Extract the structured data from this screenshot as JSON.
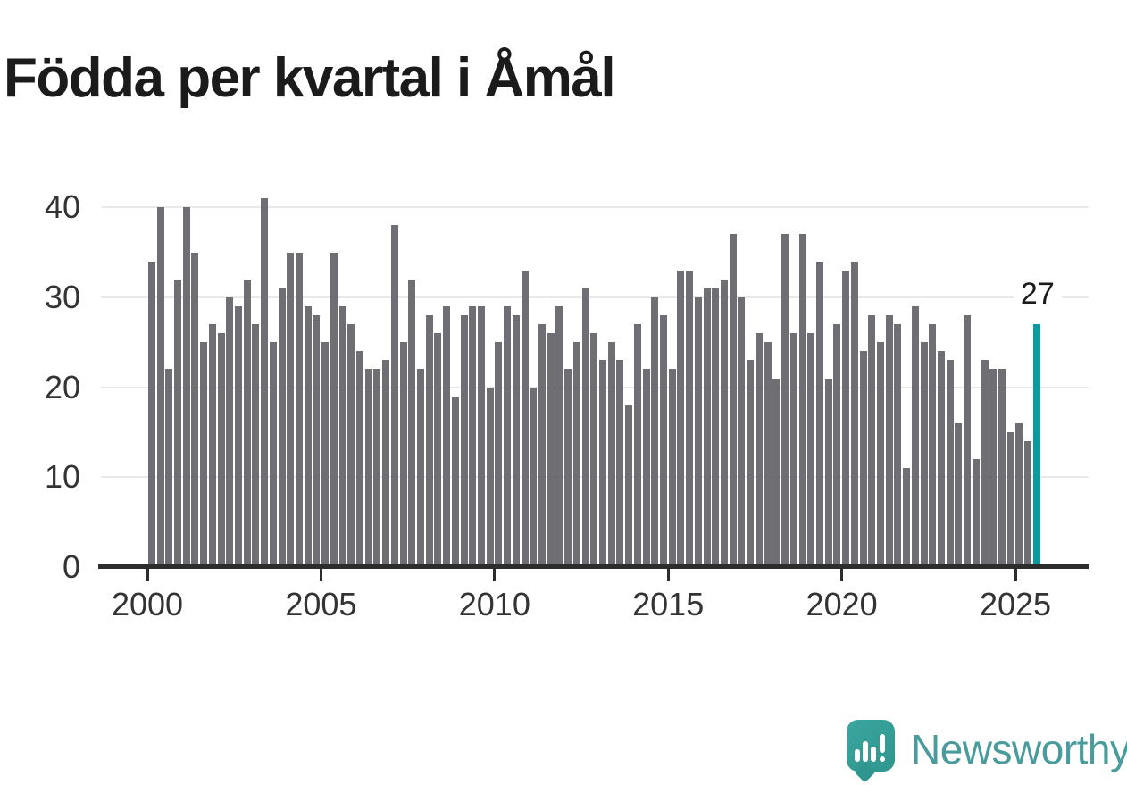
{
  "title": "Födda per kvartal i Åmål",
  "annotation": {
    "last_value_label": "27"
  },
  "logo": {
    "text": "Newsworthy"
  },
  "colors": {
    "bar": "#6e6e74",
    "highlight": "#0b9aa0",
    "axis": "#2d2d2d",
    "gridline": "#e9e9e9",
    "text": "#1b1b1b",
    "logo_icon": "#35a19b",
    "logo_text": "#4a9b9b"
  },
  "chart_data": {
    "type": "bar",
    "title": "Födda per kvartal i Åmål",
    "xlabel": "",
    "ylabel": "",
    "frequency": "quarterly",
    "x_start": "2000 Q1",
    "x_end": "2025 Q3",
    "ylim": [
      0,
      40
    ],
    "yticks": [
      0,
      10,
      20,
      30,
      40
    ],
    "xticks": [
      "2000",
      "2005",
      "2010",
      "2015",
      "2020",
      "2025"
    ],
    "grid": true,
    "highlight_last_bar": true,
    "last_bar_value": 27,
    "values_by_year": {
      "2000": [
        34,
        40,
        22,
        32
      ],
      "2001": [
        40,
        35,
        25,
        27
      ],
      "2002": [
        26,
        30,
        29,
        32
      ],
      "2003": [
        27,
        41,
        25,
        31
      ],
      "2004": [
        35,
        35,
        29,
        28
      ],
      "2005": [
        25,
        35,
        29,
        27
      ],
      "2006": [
        24,
        22,
        22,
        23
      ],
      "2007": [
        38,
        25,
        32,
        22
      ],
      "2008": [
        28,
        26,
        29,
        19
      ],
      "2009": [
        28,
        29,
        29,
        20
      ],
      "2010": [
        25,
        29,
        28,
        33
      ],
      "2011": [
        20,
        27,
        26,
        29
      ],
      "2012": [
        22,
        25,
        31,
        26
      ],
      "2013": [
        23,
        25,
        23,
        18
      ],
      "2014": [
        27,
        22,
        30,
        28
      ],
      "2015": [
        22,
        33,
        33,
        30
      ],
      "2016": [
        31,
        31,
        32,
        37
      ],
      "2017": [
        30,
        23,
        26,
        25
      ],
      "2018": [
        21,
        37,
        26,
        37
      ],
      "2019": [
        26,
        34,
        21,
        27
      ],
      "2020": [
        33,
        34,
        24,
        28
      ],
      "2021": [
        25,
        28,
        27,
        11
      ],
      "2022": [
        29,
        25,
        27,
        24
      ],
      "2023": [
        23,
        16,
        28,
        12
      ],
      "2024": [
        23,
        22,
        22,
        15
      ],
      "2025": [
        16,
        14,
        27
      ]
    }
  }
}
